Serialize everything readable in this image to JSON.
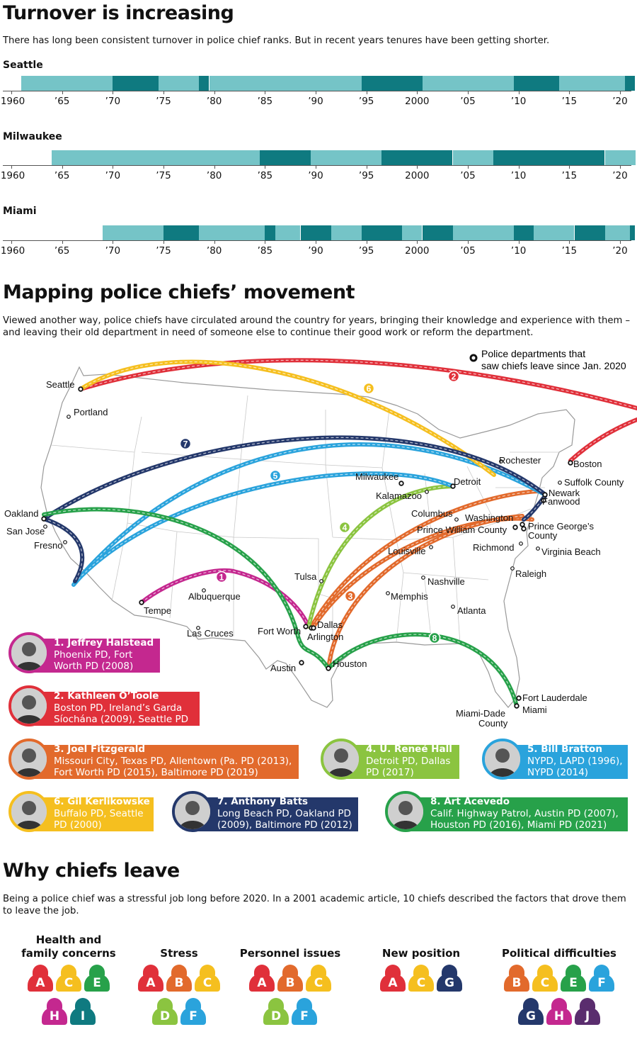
{
  "section1": {
    "title": "Turnover is increasing",
    "intro": "There has long been consistent turnover in police chief ranks. But in recent years tenures have been getting shorter.",
    "axis_labels": [
      "1960",
      "’65",
      "’70",
      "’75",
      "’80",
      "’85",
      "’90",
      "’95",
      "2000",
      "’05",
      "’10",
      "’15",
      "’20"
    ],
    "colors": {
      "light": "#75c4c7",
      "dark": "#0f7a80"
    },
    "cities": [
      {
        "name": "Seattle",
        "start": 1961.0,
        "tenures": [
          [
            1961.0,
            1970.0
          ],
          [
            1970.0,
            1974.5
          ],
          [
            1974.5,
            1978.5
          ],
          [
            1978.5,
            1979.5
          ],
          [
            1979.5,
            1994.5
          ],
          [
            1994.5,
            2000.5
          ],
          [
            2000.5,
            2009.5
          ],
          [
            2009.5,
            2014.0
          ],
          [
            2014.0,
            2020.5
          ],
          [
            2020.5,
            2021.5
          ]
        ]
      },
      {
        "name": "Milwaukee",
        "start": 1964.0,
        "tenures": [
          [
            1964.0,
            1984.5
          ],
          [
            1984.5,
            1989.5
          ],
          [
            1989.5,
            1996.5
          ],
          [
            1996.5,
            2003.5
          ],
          [
            2003.5,
            2007.5
          ],
          [
            2007.5,
            2018.5
          ],
          [
            2018.5,
            2021.5
          ]
        ]
      },
      {
        "name": "Miami",
        "start": 1969.0,
        "tenures": [
          [
            1969.0,
            1975.0
          ],
          [
            1975.0,
            1978.5
          ],
          [
            1978.5,
            1985.0
          ],
          [
            1985.0,
            1986.0
          ],
          [
            1986.0,
            1988.5
          ],
          [
            1988.5,
            1991.5
          ],
          [
            1991.5,
            1994.5
          ],
          [
            1994.5,
            1998.5
          ],
          [
            1998.5,
            2000.5
          ],
          [
            2000.5,
            2003.5
          ],
          [
            2003.5,
            2009.5
          ],
          [
            2009.5,
            2011.5
          ],
          [
            2011.5,
            2015.5
          ],
          [
            2015.5,
            2018.5
          ],
          [
            2018.5,
            2021.0
          ],
          [
            2021.0,
            2021.5
          ]
        ]
      }
    ]
  },
  "section2": {
    "title": "Mapping police chiefs’ movement",
    "intro": "Viewed another way, police chiefs have circulated around the country for years, bringing their knowledge and experience with them – and leaving their old department in need of someone else to continue their good work or reform the department.",
    "legend_text": [
      "Police departments that",
      "saw chiefs leave since Jan. 2020"
    ],
    "city_labels": [
      "Seattle",
      "Portland",
      "Oakland",
      "San Jose",
      "Fresno",
      "Tempe",
      "Albuquerque",
      "Las Cruces",
      "Tulsa",
      "Fort Worth",
      "Dallas",
      "Arlington",
      "Austin",
      "Houston",
      "Memphis",
      "Nashville",
      "Atlanta",
      "Louisville",
      "Milwaukee",
      "Kalamazoo",
      "Detroit",
      "Columbus",
      "Washington",
      "Prince William County",
      "Prince George’s",
      "County",
      "Richmond",
      "Virginia Beach",
      "Raleigh",
      "Rochester",
      "Boston",
      "Suffolk County",
      "Newark",
      "Fanwood",
      "Fort Lauderdale",
      "Miami",
      "Miami-Dade",
      "County"
    ],
    "route_numbers": [
      "1",
      "2",
      "3",
      "4",
      "5",
      "6",
      "7",
      "8"
    ],
    "route_colors": [
      "#c4288f",
      "#e0303a",
      "#e26a2c",
      "#8bc440",
      "#2aa3dc",
      "#f5bf1f",
      "#24386b",
      "#27a14a"
    ],
    "chiefs": [
      {
        "num": "1. Jeffrey Halstead",
        "lines": [
          "Phoenix PD, Fort",
          "Worth PD (2008)"
        ],
        "color": "#c4288f"
      },
      {
        "num": "2. Kathleen O’Toole",
        "lines": [
          "Boston PD, Ireland’s Garda",
          "Síochána (2009), Seattle PD"
        ],
        "color": "#e0303a"
      },
      {
        "num": "3. Joel Fitzgerald",
        "lines": [
          "Missouri City, Texas PD, Allentown (Pa. PD (2013),",
          "Fort Worth PD (2015), Baltimore PD (2019)"
        ],
        "color": "#e26a2c"
      },
      {
        "num": "4. U. Reneé Hall",
        "lines": [
          "Detroit PD, Dallas",
          "PD (2017)"
        ],
        "color": "#8bc440"
      },
      {
        "num": "5. Bill Bratton",
        "lines": [
          "NYPD, LAPD (1996),",
          "NYPD (2014)"
        ],
        "color": "#2aa3dc"
      },
      {
        "num": "6. Gil Kerlikowske",
        "lines": [
          "Buffalo PD, Seattle",
          "PD (2000)"
        ],
        "color": "#f5bf1f"
      },
      {
        "num": "7. Anthony Batts",
        "lines": [
          "Long Beach PD, Oakland PD",
          "(2009), Baltimore PD (2012)"
        ],
        "color": "#24386b"
      },
      {
        "num": "8. Art Acevedo",
        "lines": [
          "Calif. Highway Patrol, Austin PD (2007),",
          "Houston PD (2016), Miami PD (2021)"
        ],
        "color": "#27a14a"
      }
    ]
  },
  "section3": {
    "title": "Why chiefs leave",
    "intro": "Being a police chief was a stressful job long before 2020. In a 2001 academic article, 10 chiefs described the factors that drove them to leave the job.",
    "letter_colors": {
      "A": "#e0303a",
      "B": "#e26a2c",
      "C": "#f5bf1f",
      "D": "#8bc440",
      "E": "#27a14a",
      "F": "#2aa3dc",
      "G": "#24386b",
      "H": "#c4288f",
      "I": "#0f7a80",
      "J": "#5a2d6e"
    },
    "factors": [
      {
        "title": [
          "Health and",
          "family concerns"
        ],
        "letters": [
          "A",
          "C",
          "E",
          "H",
          "I"
        ]
      },
      {
        "title": [
          "Stress"
        ],
        "letters": [
          "A",
          "B",
          "C",
          "D",
          "F"
        ]
      },
      {
        "title": [
          "Personnel issues"
        ],
        "letters": [
          "A",
          "B",
          "C",
          "D",
          "F"
        ]
      },
      {
        "title": [
          "New position"
        ],
        "letters": [
          "A",
          "C",
          "G"
        ]
      },
      {
        "title": [
          "Political difficulties"
        ],
        "letters": [
          "B",
          "C",
          "E",
          "F",
          "G",
          "H",
          "J"
        ]
      }
    ]
  }
}
